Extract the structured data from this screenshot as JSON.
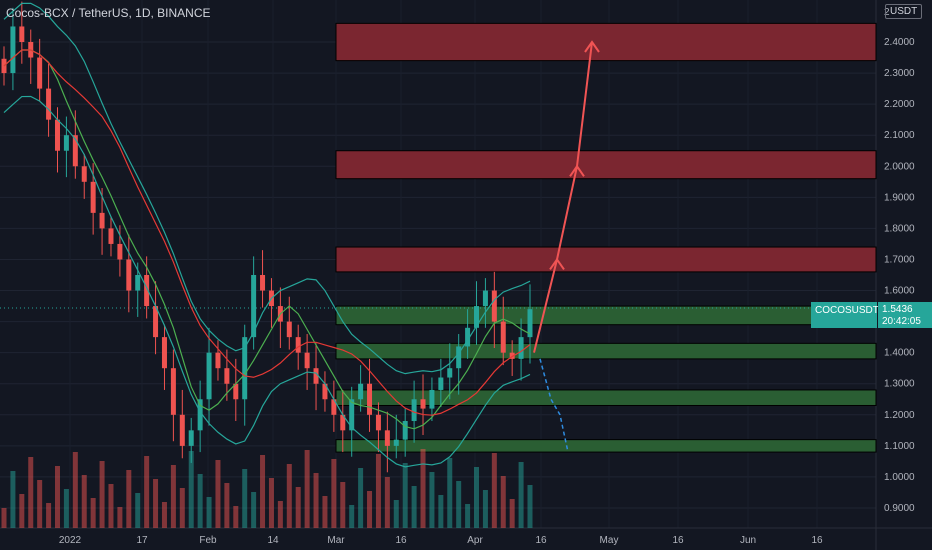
{
  "header": {
    "title": "Cocos-BCX / TetherUS, 1D, BINANCE"
  },
  "price_scale": {
    "unit_label": "USDT",
    "top_label": "2"
  },
  "last_price": {
    "symbol": "COCOSUSDT",
    "price": "1.5436",
    "countdown": "20:42:05"
  },
  "colors": {
    "background": "#131722",
    "up": "#26a69a",
    "down": "#ef5350",
    "resistance_zone": "#7b2630",
    "support_zone": "#2a5e33",
    "arrow_up": "#f05454",
    "arrow_down": "#2f8ce0"
  },
  "chart_data": {
    "type": "candlestick",
    "pair": "COCOSUSDT",
    "timeframe": "1D",
    "y_ticks": [
      "0.9000",
      "1.0000",
      "1.1000",
      "1.2000",
      "1.3000",
      "1.4000",
      "1.5000",
      "1.6000",
      "1.7000",
      "1.8000",
      "1.9000",
      "2.0000",
      "2.1000",
      "2.2000",
      "2.3000",
      "2.4000"
    ],
    "x_ticks": [
      "2022",
      "17",
      "Feb",
      "14",
      "Mar",
      "16",
      "Apr",
      "16",
      "May",
      "16",
      "Jun",
      "16"
    ],
    "ylim": [
      0.87,
      2.47
    ],
    "resistance_zones": [
      [
        2.34,
        2.46
      ],
      [
        1.96,
        2.05
      ],
      [
        1.66,
        1.74
      ]
    ],
    "support_zones": [
      [
        1.49,
        1.55
      ],
      [
        1.38,
        1.43
      ],
      [
        1.23,
        1.28
      ],
      [
        1.08,
        1.12
      ]
    ],
    "projection_up": [
      1.4,
      1.7,
      2.0,
      2.4
    ],
    "projection_down": [
      1.38,
      1.08
    ],
    "close_path": [
      2.3,
      2.45,
      2.4,
      2.35,
      2.25,
      2.15,
      2.05,
      2.1,
      2.0,
      1.95,
      1.85,
      1.8,
      1.75,
      1.7,
      1.6,
      1.65,
      1.55,
      1.45,
      1.35,
      1.2,
      1.1,
      1.15,
      1.25,
      1.4,
      1.35,
      1.3,
      1.25,
      1.45,
      1.65,
      1.6,
      1.55,
      1.5,
      1.45,
      1.4,
      1.35,
      1.3,
      1.25,
      1.2,
      1.15,
      1.25,
      1.3,
      1.2,
      1.15,
      1.1,
      1.12,
      1.18,
      1.25,
      1.22,
      1.28,
      1.32,
      1.35,
      1.42,
      1.48,
      1.55,
      1.6,
      1.5,
      1.4,
      1.38,
      1.45,
      1.54
    ]
  }
}
